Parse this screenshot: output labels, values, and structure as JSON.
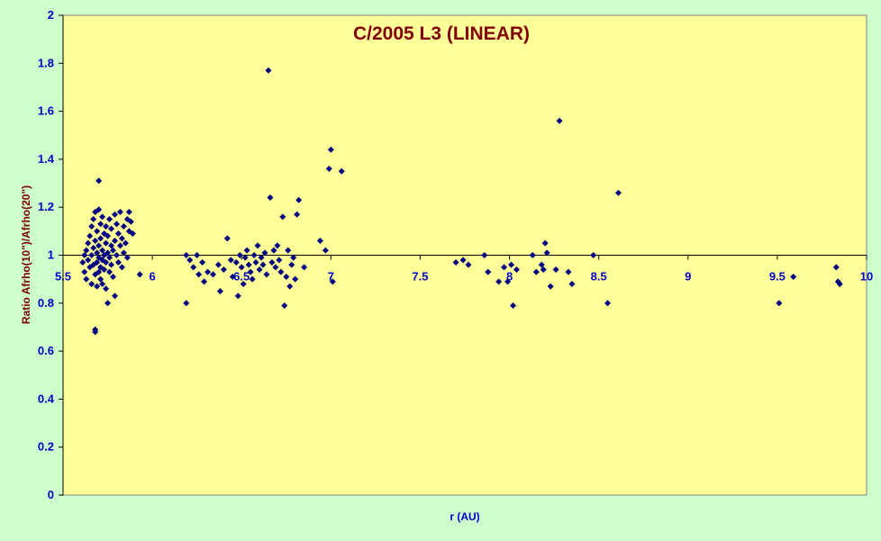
{
  "chart_data": {
    "type": "scatter",
    "title": "C/2005 L3 (LINEAR)",
    "xlabel": "r (AU)",
    "ylabel": "Ratio Afrho(10\")/Afrho(20\")",
    "xlim": [
      5.5,
      10
    ],
    "ylim": [
      0,
      2
    ],
    "x_ticks": [
      "5.5",
      "6",
      "6.5",
      "7",
      "7.5",
      "8",
      "8.5",
      "9",
      "9.5",
      "10"
    ],
    "y_ticks": [
      "0",
      "0.2",
      "0.4",
      "0.6",
      "0.8",
      "1",
      "1.2",
      "1.4",
      "1.6",
      "1.8",
      "2"
    ],
    "grid": false,
    "legend": "none",
    "colors": {
      "background": "#ccffcc",
      "plot_area": "#ffff99",
      "marker": "#000080",
      "title": "#800000",
      "tick_labels": "#0000cc"
    },
    "series": [
      {
        "marker": "diamond",
        "points": [
          [
            5.61,
            0.97
          ],
          [
            5.62,
            1.0
          ],
          [
            5.62,
            0.93
          ],
          [
            5.63,
            1.02
          ],
          [
            5.63,
            0.9
          ],
          [
            5.64,
            1.05
          ],
          [
            5.64,
            0.98
          ],
          [
            5.65,
            1.08
          ],
          [
            5.65,
            0.95
          ],
          [
            5.66,
            1.12
          ],
          [
            5.66,
            1.0
          ],
          [
            5.66,
            0.88
          ],
          [
            5.67,
            1.03
          ],
          [
            5.67,
            0.96
          ],
          [
            5.67,
            1.15
          ],
          [
            5.68,
            0.69
          ],
          [
            5.68,
            0.68
          ],
          [
            5.68,
            1.18
          ],
          [
            5.68,
            0.92
          ],
          [
            5.68,
            1.06
          ],
          [
            5.69,
            1.01
          ],
          [
            5.69,
            0.87
          ],
          [
            5.69,
            1.1
          ],
          [
            5.69,
            0.97
          ],
          [
            5.7,
            1.31
          ],
          [
            5.7,
            1.19
          ],
          [
            5.7,
            1.04
          ],
          [
            5.7,
            0.93
          ],
          [
            5.7,
            0.99
          ],
          [
            5.71,
            1.13
          ],
          [
            5.71,
            1.07
          ],
          [
            5.71,
            0.95
          ],
          [
            5.71,
            0.9
          ],
          [
            5.72,
            1.02
          ],
          [
            5.72,
            1.16
          ],
          [
            5.72,
            0.98
          ],
          [
            5.72,
            0.88
          ],
          [
            5.73,
            1.09
          ],
          [
            5.73,
            1.0
          ],
          [
            5.73,
            0.94
          ],
          [
            5.74,
            1.05
          ],
          [
            5.74,
            0.86
          ],
          [
            5.74,
            1.12
          ],
          [
            5.74,
            0.97
          ],
          [
            5.75,
            0.8
          ],
          [
            5.75,
            1.01
          ],
          [
            5.75,
            1.08
          ],
          [
            5.76,
            0.93
          ],
          [
            5.76,
            1.15
          ],
          [
            5.76,
            0.99
          ],
          [
            5.77,
            1.04
          ],
          [
            5.77,
            0.96
          ],
          [
            5.77,
            1.11
          ],
          [
            5.78,
            1.02
          ],
          [
            5.78,
            0.91
          ],
          [
            5.79,
            1.17
          ],
          [
            5.79,
            0.83
          ],
          [
            5.79,
            1.06
          ],
          [
            5.8,
            1.0
          ],
          [
            5.8,
            1.13
          ],
          [
            5.81,
            0.97
          ],
          [
            5.81,
            1.09
          ],
          [
            5.82,
            1.04
          ],
          [
            5.82,
            1.18
          ],
          [
            5.83,
            0.95
          ],
          [
            5.83,
            1.07
          ],
          [
            5.84,
            1.12
          ],
          [
            5.84,
            1.01
          ],
          [
            5.85,
            1.05
          ],
          [
            5.86,
            1.15
          ],
          [
            5.86,
            0.99
          ],
          [
            5.87,
            1.18
          ],
          [
            5.87,
            1.1
          ],
          [
            5.88,
            1.14
          ],
          [
            5.89,
            1.09
          ],
          [
            5.93,
            0.92
          ],
          [
            6.19,
            1.0
          ],
          [
            6.19,
            0.8
          ],
          [
            6.21,
            0.98
          ],
          [
            6.23,
            0.95
          ],
          [
            6.25,
            1.0
          ],
          [
            6.26,
            0.92
          ],
          [
            6.28,
            0.97
          ],
          [
            6.29,
            0.89
          ],
          [
            6.31,
            0.93
          ],
          [
            6.34,
            0.92
          ],
          [
            6.37,
            0.96
          ],
          [
            6.38,
            0.85
          ],
          [
            6.4,
            0.94
          ],
          [
            6.42,
            1.07
          ],
          [
            6.44,
            0.98
          ],
          [
            6.45,
            0.91
          ],
          [
            6.47,
            0.97
          ],
          [
            6.48,
            0.83
          ],
          [
            6.49,
            1.0
          ],
          [
            6.5,
            0.95
          ],
          [
            6.51,
            0.88
          ],
          [
            6.52,
            0.99
          ],
          [
            6.53,
            1.02
          ],
          [
            6.54,
            0.96
          ],
          [
            6.55,
            0.93
          ],
          [
            6.56,
            0.9
          ],
          [
            6.57,
            1.0
          ],
          [
            6.58,
            0.97
          ],
          [
            6.59,
            1.04
          ],
          [
            6.6,
            0.94
          ],
          [
            6.61,
            0.99
          ],
          [
            6.62,
            0.96
          ],
          [
            6.63,
            1.01
          ],
          [
            6.64,
            0.92
          ],
          [
            6.65,
            1.77
          ],
          [
            6.66,
            1.24
          ],
          [
            6.67,
            0.97
          ],
          [
            6.68,
            1.02
          ],
          [
            6.69,
            0.95
          ],
          [
            6.7,
            1.04
          ],
          [
            6.71,
            0.98
          ],
          [
            6.72,
            0.93
          ],
          [
            6.73,
            1.16
          ],
          [
            6.74,
            0.79
          ],
          [
            6.75,
            0.91
          ],
          [
            6.76,
            1.02
          ],
          [
            6.77,
            0.87
          ],
          [
            6.78,
            0.96
          ],
          [
            6.79,
            0.99
          ],
          [
            6.8,
            0.9
          ],
          [
            6.81,
            1.17
          ],
          [
            6.82,
            1.23
          ],
          [
            6.85,
            0.95
          ],
          [
            6.94,
            1.06
          ],
          [
            6.97,
            1.02
          ],
          [
            6.99,
            1.36
          ],
          [
            7.0,
            1.44
          ],
          [
            7.01,
            0.89
          ],
          [
            7.06,
            1.35
          ],
          [
            7.7,
            0.97
          ],
          [
            7.74,
            0.98
          ],
          [
            7.77,
            0.96
          ],
          [
            7.86,
            1.0
          ],
          [
            7.88,
            0.93
          ],
          [
            7.94,
            0.89
          ],
          [
            7.97,
            0.95
          ],
          [
            7.99,
            0.89
          ],
          [
            8.01,
            0.96
          ],
          [
            8.02,
            0.79
          ],
          [
            8.04,
            0.94
          ],
          [
            8.13,
            1.0
          ],
          [
            8.15,
            0.93
          ],
          [
            8.18,
            0.96
          ],
          [
            8.19,
            0.94
          ],
          [
            8.2,
            1.05
          ],
          [
            8.21,
            1.01
          ],
          [
            8.23,
            0.87
          ],
          [
            8.26,
            0.94
          ],
          [
            8.28,
            1.56
          ],
          [
            8.33,
            0.93
          ],
          [
            8.35,
            0.88
          ],
          [
            8.47,
            1.0
          ],
          [
            8.55,
            0.8
          ],
          [
            8.61,
            1.26
          ],
          [
            9.51,
            0.8
          ],
          [
            9.59,
            0.91
          ],
          [
            9.83,
            0.95
          ],
          [
            9.84,
            0.89
          ],
          [
            9.85,
            0.88
          ]
        ]
      }
    ]
  }
}
